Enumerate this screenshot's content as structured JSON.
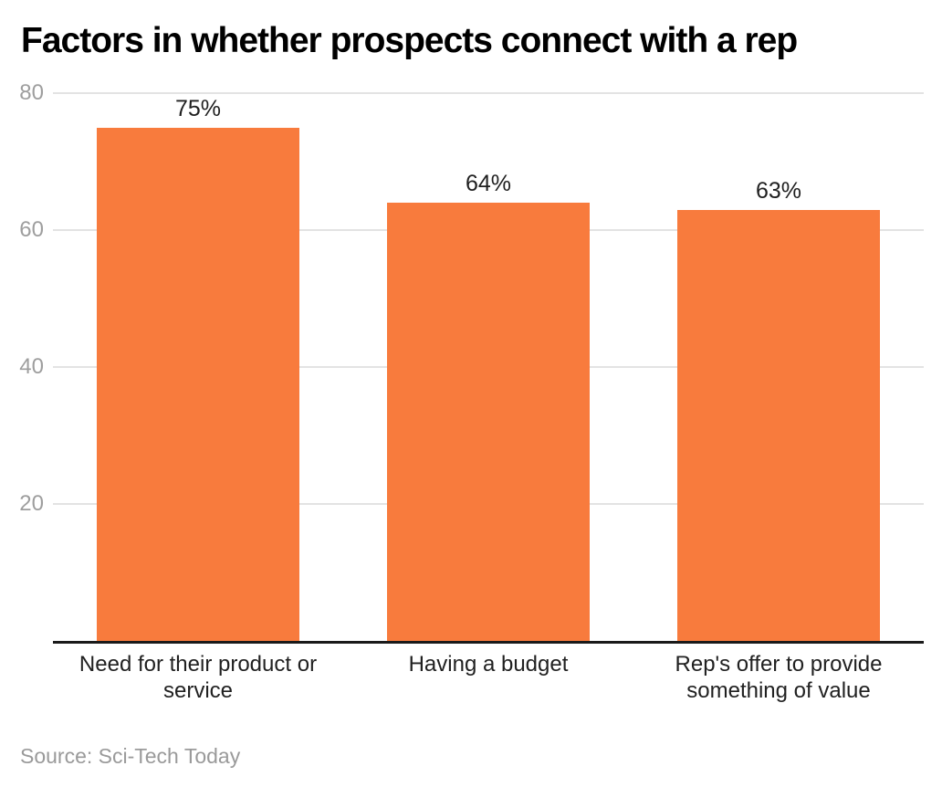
{
  "header": {
    "title": "Factors in whether prospects connect with a rep"
  },
  "footer": {
    "source": "Source: Sci-Tech Today"
  },
  "colors": {
    "bar": "#F87B3D",
    "title": "#000000",
    "axis_line": "#1A1A1A",
    "gridline": "#E3E3E3",
    "y_tick_label": "#9E9E9E",
    "value_label": "#1F1F1F",
    "category_label": "#212121",
    "source_text": "#9A9A9A",
    "background": "#FFFFFF"
  },
  "chart_data": {
    "type": "bar",
    "title": "Factors in whether prospects connect with a rep",
    "categories": [
      "Need for their product or service",
      "Having a budget",
      "Rep's offer to provide something of value"
    ],
    "values": [
      75,
      64,
      63
    ],
    "value_labels": [
      "75%",
      "64%",
      "63%"
    ],
    "yticks": [
      20,
      40,
      60,
      80
    ],
    "ylim": [
      0,
      80
    ],
    "xlabel": "",
    "ylabel": "",
    "grid": "horizontal",
    "legend": "none",
    "bar_color": "#F87B3D",
    "source": "Source: Sci-Tech Today"
  }
}
